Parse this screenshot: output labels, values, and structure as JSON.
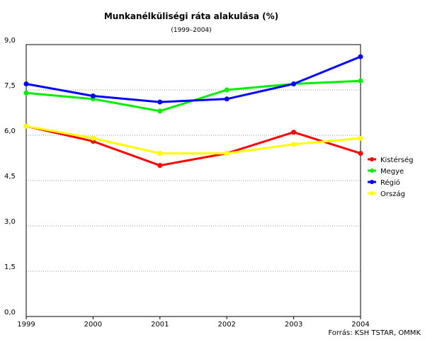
{
  "chart_data": {
    "type": "line",
    "title": "Munkanélküliségi ráta alakulása (%)",
    "subtitle": "(1999–2004)",
    "source": "Forrás: KSH TSTAR, OMMK",
    "categories": [
      "1999",
      "2000",
      "2001",
      "2002",
      "2003",
      "2004"
    ],
    "series": [
      {
        "name": "Kistérség",
        "color": "#ff0000",
        "values": [
          6.3,
          5.8,
          5.0,
          5.4,
          6.1,
          5.4
        ]
      },
      {
        "name": "Megye",
        "color": "#00ee00",
        "values": [
          7.4,
          7.2,
          6.8,
          7.5,
          7.7,
          7.8
        ]
      },
      {
        "name": "Régió",
        "color": "#0000ff",
        "values": [
          7.7,
          7.3,
          7.1,
          7.2,
          7.7,
          8.6
        ]
      },
      {
        "name": "Ország",
        "color": "#ffff00",
        "values": [
          6.3,
          5.9,
          5.4,
          5.4,
          5.7,
          5.9
        ]
      }
    ],
    "ylim": [
      0,
      9
    ],
    "yticks": [
      {
        "value": 0,
        "label": "0,0"
      },
      {
        "value": 1.5,
        "label": "1,5"
      },
      {
        "value": 3,
        "label": "3,0"
      },
      {
        "value": 4.5,
        "label": "4,5"
      },
      {
        "value": 6,
        "label": "6,0"
      },
      {
        "value": 7.5,
        "label": "7,5"
      },
      {
        "value": 9,
        "label": "9,0"
      }
    ],
    "grid": true,
    "legend": "right"
  }
}
